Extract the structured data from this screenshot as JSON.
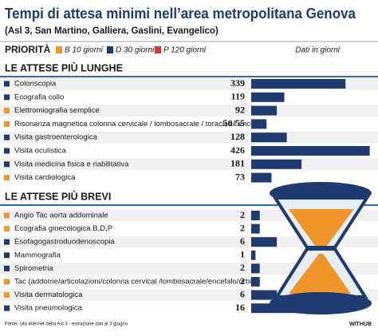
{
  "header": {
    "title": "Tempi di attesa minimi nell’area metropolitana Genova",
    "subtitle": "(Asl 3, San Martino, Galliera, Gaslini, Evangelico)"
  },
  "legend": {
    "title": "PRIORITÀ",
    "items": [
      {
        "label": "B 10 giorni",
        "color": "#f0952a"
      },
      {
        "label": "D 30 giorni",
        "color": "#1f3a6e"
      },
      {
        "label": "P 120 giorni",
        "color": "#d33a2c"
      }
    ],
    "unit": "Dati in giorni"
  },
  "chart_data": [
    {
      "type": "bar",
      "orientation": "horizontal",
      "title": "LE ATTESE PIÙ LUNGHE",
      "categories": [
        "Colonscopia",
        "Ecografia collo",
        "Elettromiografia semplice",
        "Risonanza magnetica colonna cervicale / lombosacrale / toracica / encefalo",
        "Visita gastroenterologica",
        "Visita oculistica",
        "Visita medicina fisica e riabilitativa",
        "Visita cardiologica"
      ],
      "category_colors": [
        "#1f3a6e",
        "#1f3a6e",
        "#f0952a",
        "#f0952a",
        "#1f3a6e",
        "#1f3a6e",
        "#1f3a6e",
        "#f0952a"
      ],
      "values": [
        339,
        119,
        92,
        55,
        128,
        426,
        181,
        73
      ],
      "value_labels": [
        "339",
        "119",
        "92",
        "50/55",
        "128",
        "426",
        "181",
        "73"
      ],
      "color": "#1f3a6e",
      "xlim": [
        0,
        430
      ]
    },
    {
      "type": "bar",
      "orientation": "horizontal",
      "title": "LE ATTESE PIÙ BREVI",
      "categories": [
        "Angio Tac aorta addominale",
        "Ecografia ginecologica B,D,P",
        "Esofagogastroduodenoscopia",
        "Mammografia",
        "Spirometria",
        "Tac (addome/articolazioni/colonna cervical /lombosacrale/encefalo/orbite)",
        "Visita dermatologica",
        "Visita pneumologica"
      ],
      "category_colors": [
        "#f0952a",
        "#f0952a",
        "#1f3a6e",
        "#1f3a6e",
        "#1f3a6e",
        "#f0952a",
        "#f0952a",
        "#1f3a6e"
      ],
      "values": [
        2,
        2,
        6,
        1,
        2,
        2,
        6,
        16
      ],
      "color": "#1f3a6e",
      "xlim": [
        0,
        28
      ]
    }
  ],
  "footer": {
    "source": "Fonte: sito internet della Asl 3 - estrazione dati al 3 giugno",
    "brand": "WITHUB"
  }
}
